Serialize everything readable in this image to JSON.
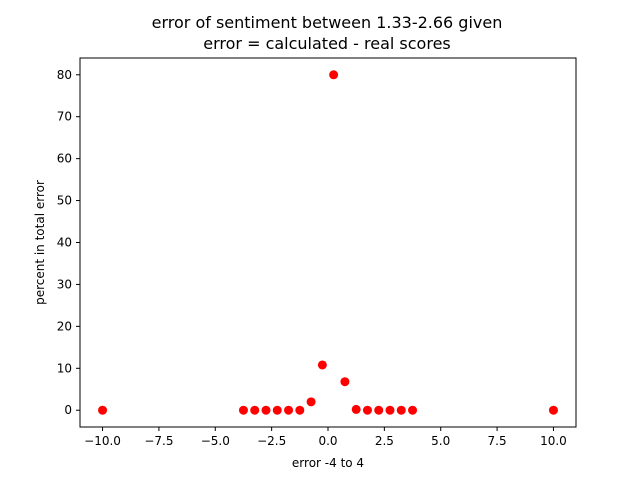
{
  "chart_data": {
    "type": "scatter",
    "title": [
      "error of sentiment between 1.33-2.66 given",
      "error = calculated - real scores"
    ],
    "xlabel": "error -4 to 4",
    "ylabel": "percent in total error",
    "xlim": [
      -11.0,
      11.0
    ],
    "ylim": [
      -4.0,
      84.0
    ],
    "xticks": [
      -10.0,
      -7.5,
      -5.0,
      -2.5,
      0.0,
      2.5,
      5.0,
      7.5,
      10.0
    ],
    "xtick_labels": [
      "−10.0",
      "−7.5",
      "−5.0",
      "−2.5",
      "0.0",
      "2.5",
      "5.0",
      "7.5",
      "10.0"
    ],
    "yticks": [
      0,
      10,
      20,
      30,
      40,
      50,
      60,
      70,
      80
    ],
    "ytick_labels": [
      "0",
      "10",
      "20",
      "30",
      "40",
      "50",
      "60",
      "70",
      "80"
    ],
    "grid": false,
    "color": "#ff0000",
    "points": [
      {
        "x": -10.0,
        "y": 0.0
      },
      {
        "x": -3.75,
        "y": 0.0
      },
      {
        "x": -3.25,
        "y": 0.0
      },
      {
        "x": -2.75,
        "y": 0.0
      },
      {
        "x": -2.25,
        "y": 0.0
      },
      {
        "x": -1.75,
        "y": 0.0
      },
      {
        "x": -1.25,
        "y": 0.0
      },
      {
        "x": -0.75,
        "y": 2.0
      },
      {
        "x": -0.25,
        "y": 10.8
      },
      {
        "x": 0.25,
        "y": 80.0
      },
      {
        "x": 0.75,
        "y": 6.8
      },
      {
        "x": 1.25,
        "y": 0.2
      },
      {
        "x": 1.75,
        "y": 0.0
      },
      {
        "x": 2.25,
        "y": 0.0
      },
      {
        "x": 2.75,
        "y": 0.0
      },
      {
        "x": 3.25,
        "y": 0.0
      },
      {
        "x": 3.75,
        "y": 0.0
      },
      {
        "x": 10.0,
        "y": 0.0
      }
    ]
  }
}
